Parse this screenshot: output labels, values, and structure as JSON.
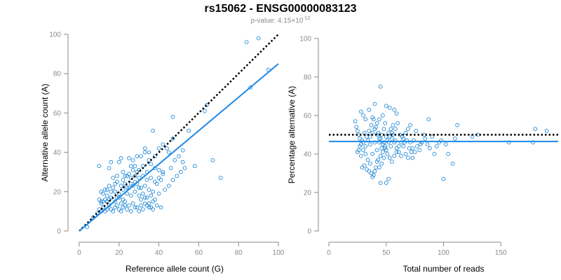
{
  "title": "rs15062 - ENSG00000083123",
  "subtitle": {
    "prefix": "p-value: 4.15",
    "times": "×10",
    "exponent": "-12"
  },
  "colors": {
    "points": "#1f88d6",
    "fit": "#1f88e5",
    "reference": "#000000",
    "axis": "#8a8a8a"
  },
  "chart_data": [
    {
      "type": "scatter",
      "xlabel": "Reference allele count (G)",
      "ylabel": "Alternative allele count (A)",
      "xlim": [
        0,
        100
      ],
      "ylim": [
        0,
        100
      ],
      "xticks": [
        0,
        20,
        40,
        60,
        80,
        100
      ],
      "yticks": [
        0,
        20,
        40,
        60,
        80,
        100
      ],
      "lines": [
        {
          "style": "dotted",
          "color": "#000000",
          "from": [
            0,
            0
          ],
          "to": [
            100,
            100
          ]
        },
        {
          "style": "solid",
          "color": "#1f88e5",
          "from": [
            0,
            0
          ],
          "to": [
            100,
            85
          ]
        }
      ],
      "points": [
        [
          84,
          96
        ],
        [
          90,
          98
        ],
        [
          95,
          82
        ],
        [
          86,
          73
        ],
        [
          63,
          61
        ],
        [
          64,
          64
        ],
        [
          55,
          51
        ],
        [
          47,
          58
        ],
        [
          71,
          27
        ],
        [
          67,
          36
        ],
        [
          58,
          33
        ],
        [
          47,
          47
        ],
        [
          37,
          51
        ],
        [
          44,
          42
        ],
        [
          45,
          40
        ],
        [
          52,
          41
        ],
        [
          50,
          38
        ],
        [
          48,
          36
        ],
        [
          42,
          30
        ],
        [
          46,
          32
        ],
        [
          52,
          35
        ],
        [
          10,
          33
        ],
        [
          15,
          32
        ],
        [
          16,
          35
        ],
        [
          20,
          35
        ],
        [
          21,
          37
        ],
        [
          25,
          37
        ],
        [
          27,
          36
        ],
        [
          29,
          38
        ],
        [
          31,
          38
        ],
        [
          33,
          40
        ],
        [
          33,
          42
        ],
        [
          35,
          40
        ],
        [
          26,
          33
        ],
        [
          28,
          33
        ],
        [
          30,
          31
        ],
        [
          32,
          33
        ],
        [
          34,
          30
        ],
        [
          36,
          34
        ],
        [
          38,
          32
        ],
        [
          40,
          31
        ],
        [
          22,
          30
        ],
        [
          24,
          28
        ],
        [
          26,
          27
        ],
        [
          28,
          28
        ],
        [
          30,
          27
        ],
        [
          32,
          28
        ],
        [
          34,
          26
        ],
        [
          36,
          27
        ],
        [
          38,
          25
        ],
        [
          40,
          27
        ],
        [
          42,
          29
        ],
        [
          19,
          25
        ],
        [
          21,
          23
        ],
        [
          23,
          24
        ],
        [
          25,
          22
        ],
        [
          27,
          23
        ],
        [
          29,
          24
        ],
        [
          31,
          22
        ],
        [
          33,
          23
        ],
        [
          35,
          21
        ],
        [
          37,
          20
        ],
        [
          39,
          24
        ],
        [
          41,
          26
        ],
        [
          17,
          22
        ],
        [
          18,
          20
        ],
        [
          20,
          19
        ],
        [
          22,
          21
        ],
        [
          24,
          19
        ],
        [
          26,
          18
        ],
        [
          28,
          20
        ],
        [
          30,
          18
        ],
        [
          32,
          19
        ],
        [
          34,
          17
        ],
        [
          36,
          18
        ],
        [
          38,
          16
        ],
        [
          40,
          19
        ],
        [
          14,
          18
        ],
        [
          15,
          16
        ],
        [
          16,
          17
        ],
        [
          18,
          15
        ],
        [
          19,
          17
        ],
        [
          21,
          14
        ],
        [
          23,
          15
        ],
        [
          25,
          13
        ],
        [
          27,
          14
        ],
        [
          29,
          12
        ],
        [
          31,
          13
        ],
        [
          33,
          14
        ],
        [
          35,
          12
        ],
        [
          37,
          11
        ],
        [
          11,
          14
        ],
        [
          12,
          12
        ],
        [
          13,
          10
        ],
        [
          14,
          11
        ],
        [
          15,
          13
        ],
        [
          16,
          11
        ],
        [
          17,
          10
        ],
        [
          18,
          12
        ],
        [
          19,
          13
        ],
        [
          20,
          11
        ],
        [
          21,
          10
        ],
        [
          22,
          12
        ],
        [
          23,
          13
        ],
        [
          24,
          11
        ],
        [
          26,
          10
        ],
        [
          28,
          12
        ],
        [
          30,
          10
        ],
        [
          32,
          11
        ],
        [
          34,
          13
        ],
        [
          36,
          12
        ],
        [
          10,
          11
        ],
        [
          11,
          10
        ],
        [
          12,
          15
        ],
        [
          13,
          16
        ],
        [
          10,
          16
        ],
        [
          12,
          19
        ],
        [
          11,
          20
        ],
        [
          14,
          21
        ],
        [
          17,
          27
        ],
        [
          19,
          28
        ],
        [
          22,
          26
        ],
        [
          25,
          29
        ],
        [
          27,
          31
        ],
        [
          29,
          30
        ],
        [
          31,
          16
        ],
        [
          33,
          17
        ],
        [
          35,
          14
        ],
        [
          37,
          15
        ],
        [
          39,
          13
        ],
        [
          41,
          12
        ],
        [
          43,
          21
        ],
        [
          45,
          23
        ],
        [
          47,
          26
        ],
        [
          49,
          28
        ],
        [
          51,
          30
        ],
        [
          53,
          32
        ],
        [
          35,
          36
        ],
        [
          38,
          38
        ],
        [
          40,
          42
        ],
        [
          42,
          44
        ],
        [
          20,
          17
        ],
        [
          22,
          16
        ],
        [
          24,
          22
        ],
        [
          26,
          24
        ],
        [
          28,
          25
        ],
        [
          30,
          22
        ],
        [
          15,
          23
        ],
        [
          13,
          21
        ],
        [
          18,
          24
        ],
        [
          23,
          28
        ],
        [
          16,
          20
        ],
        [
          14,
          15
        ],
        [
          11,
          15
        ],
        [
          9,
          9
        ],
        [
          7,
          7
        ],
        [
          4,
          2
        ]
      ]
    },
    {
      "type": "scatter",
      "xlabel": "Total number of reads",
      "ylabel": "Percentage alternative (A)",
      "xlim": [
        0,
        200
      ],
      "ylim": [
        0,
        100
      ],
      "xticks": [
        0,
        50,
        100,
        150
      ],
      "yticks": [
        0,
        20,
        40,
        60,
        80,
        100
      ],
      "lines": [
        {
          "style": "dotted",
          "color": "#000000",
          "from": [
            0,
            50
          ],
          "to": [
            200,
            50
          ]
        },
        {
          "style": "solid",
          "color": "#1f88e5",
          "from": [
            0,
            46.5
          ],
          "to": [
            200,
            46.5
          ]
        }
      ],
      "points": [
        [
          180,
          53
        ],
        [
          190,
          52
        ],
        [
          178,
          46
        ],
        [
          157,
          46
        ],
        [
          130,
          50
        ],
        [
          125,
          49
        ],
        [
          112,
          55
        ],
        [
          110,
          48
        ],
        [
          108,
          35
        ],
        [
          100,
          27
        ],
        [
          104,
          40
        ],
        [
          102,
          45
        ],
        [
          96,
          46
        ],
        [
          90,
          49
        ],
        [
          87,
          58
        ],
        [
          83,
          50
        ],
        [
          80,
          45
        ],
        [
          76,
          52
        ],
        [
          73,
          38
        ],
        [
          72,
          41
        ],
        [
          70,
          43
        ],
        [
          68,
          47
        ],
        [
          66,
          46
        ],
        [
          64,
          49
        ],
        [
          62,
          50
        ],
        [
          60,
          56
        ],
        [
          58,
          53
        ],
        [
          56,
          55
        ],
        [
          55,
          48
        ],
        [
          54,
          44
        ],
        [
          52,
          46
        ],
        [
          50,
          42
        ],
        [
          48,
          38
        ],
        [
          46,
          35
        ],
        [
          44,
          33
        ],
        [
          42,
          36
        ],
        [
          40,
          31
        ],
        [
          38,
          28
        ],
        [
          36,
          35
        ],
        [
          34,
          37
        ],
        [
          32,
          40
        ],
        [
          30,
          42
        ],
        [
          28,
          45
        ],
        [
          27,
          48
        ],
        [
          26,
          50
        ],
        [
          25,
          52
        ],
        [
          24,
          54
        ],
        [
          23,
          57
        ],
        [
          25,
          41
        ],
        [
          27,
          44
        ],
        [
          29,
          47
        ],
        [
          31,
          51
        ],
        [
          33,
          49
        ],
        [
          35,
          52
        ],
        [
          37,
          55
        ],
        [
          39,
          58
        ],
        [
          41,
          54
        ],
        [
          43,
          51
        ],
        [
          45,
          48
        ],
        [
          47,
          45
        ],
        [
          49,
          43
        ],
        [
          51,
          40
        ],
        [
          53,
          38
        ],
        [
          55,
          36
        ],
        [
          57,
          39
        ],
        [
          59,
          41
        ],
        [
          61,
          44
        ],
        [
          63,
          46
        ],
        [
          65,
          48
        ],
        [
          67,
          51
        ],
        [
          69,
          53
        ],
        [
          71,
          55
        ],
        [
          74,
          47
        ],
        [
          77,
          44
        ],
        [
          79,
          42
        ],
        [
          81,
          46
        ],
        [
          84,
          48
        ],
        [
          86,
          45
        ],
        [
          88,
          43
        ],
        [
          92,
          40
        ],
        [
          94,
          44
        ],
        [
          98,
          47
        ],
        [
          28,
          62
        ],
        [
          30,
          60
        ],
        [
          32,
          58
        ],
        [
          35,
          63
        ],
        [
          38,
          59
        ],
        [
          40,
          66
        ],
        [
          45,
          75
        ],
        [
          50,
          65
        ],
        [
          53,
          64
        ],
        [
          57,
          63
        ],
        [
          59,
          61
        ],
        [
          47,
          60
        ],
        [
          49,
          56
        ],
        [
          42,
          56
        ],
        [
          44,
          58
        ],
        [
          36,
          45
        ],
        [
          38,
          40
        ],
        [
          40,
          46
        ],
        [
          42,
          42
        ],
        [
          44,
          48
        ],
        [
          46,
          50
        ],
        [
          48,
          53
        ],
        [
          50,
          25
        ],
        [
          52,
          27
        ],
        [
          45,
          25
        ],
        [
          29,
          33
        ],
        [
          31,
          34
        ],
        [
          33,
          32
        ],
        [
          35,
          31
        ],
        [
          37,
          30
        ],
        [
          39,
          29
        ],
        [
          41,
          33
        ],
        [
          43,
          37
        ],
        [
          45,
          39
        ],
        [
          47,
          41
        ],
        [
          49,
          44
        ],
        [
          51,
          47
        ],
        [
          53,
          49
        ],
        [
          55,
          51
        ],
        [
          57,
          46
        ],
        [
          59,
          43
        ],
        [
          61,
          41
        ],
        [
          63,
          39
        ],
        [
          65,
          44
        ],
        [
          67,
          40
        ],
        [
          69,
          38
        ],
        [
          71,
          46
        ],
        [
          73,
          43
        ],
        [
          75,
          41
        ],
        [
          26,
          42
        ],
        [
          28,
          39
        ],
        [
          30,
          46
        ],
        [
          32,
          44
        ],
        [
          34,
          47
        ],
        [
          36,
          49
        ],
        [
          38,
          51
        ],
        [
          40,
          53
        ],
        [
          42,
          50
        ],
        [
          44,
          46
        ],
        [
          46,
          43
        ],
        [
          48,
          46
        ],
        [
          50,
          49
        ],
        [
          52,
          51
        ],
        [
          54,
          53
        ],
        [
          56,
          50
        ],
        [
          58,
          47
        ]
      ]
    }
  ]
}
